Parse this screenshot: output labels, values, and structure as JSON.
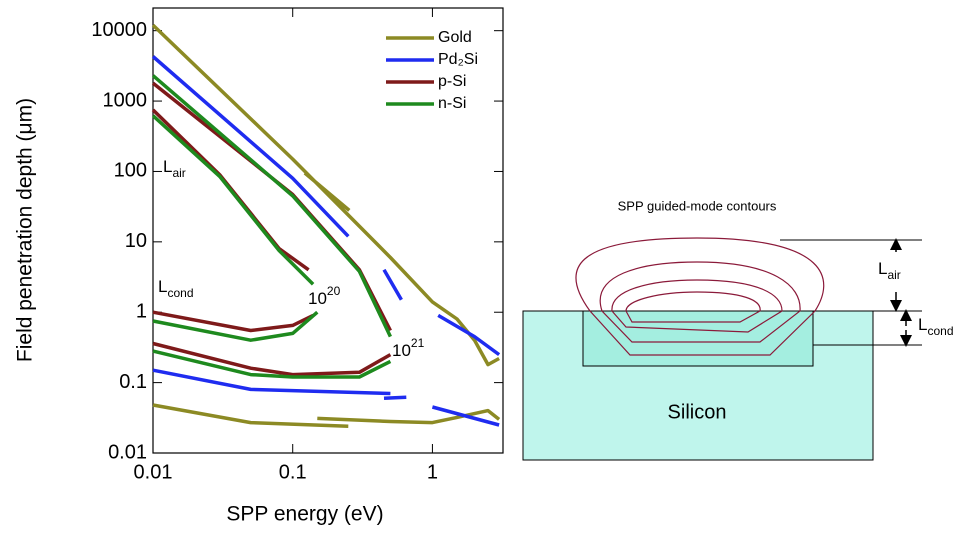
{
  "chart_data": {
    "type": "line",
    "log_x": true,
    "log_y": true,
    "xlabel": "SPP energy (eV)",
    "ylabel": "Field penetration depth (μm)",
    "xlim": [
      0.01,
      3.2
    ],
    "ylim": [
      0.01,
      21000
    ],
    "xticks": [
      0.01,
      0.1,
      1
    ],
    "yticks": [
      0.01,
      0.1,
      1,
      10,
      100,
      1000,
      10000
    ],
    "legend": "upper right",
    "series": [
      {
        "name": "Gold",
        "color": "#8c8a24",
        "x": [
          0.01,
          0.1,
          0.5,
          1,
          1.5,
          2,
          2.5,
          3,
          null,
          0.122,
          0.254,
          null,
          0.01,
          0.05,
          0.25,
          null,
          0.15,
          0.5,
          1,
          1.5,
          2.5,
          3
        ],
        "values": [
          12000,
          150,
          6,
          1.4,
          0.8,
          0.4,
          0.18,
          0.22,
          null,
          95,
          28,
          null,
          0.048,
          0.027,
          0.024,
          null,
          0.031,
          0.028,
          0.027,
          0.032,
          0.04,
          0.03
        ]
      },
      {
        "name": "Pd₂Si",
        "color": "#1f2cf0",
        "x": [
          0.01,
          0.1,
          0.25,
          null,
          0.45,
          0.6,
          null,
          1.1,
          2,
          3,
          null,
          0.01,
          0.05,
          0.5,
          null,
          0.45,
          0.65,
          null,
          1,
          3
        ],
        "values": [
          4300,
          80,
          12,
          null,
          4,
          1.5,
          null,
          0.9,
          0.45,
          0.25,
          null,
          0.15,
          0.08,
          0.07,
          null,
          0.06,
          0.062,
          null,
          0.045,
          0.025
        ]
      },
      {
        "name": "p-Si",
        "color": "#7e1a1a",
        "x": [
          0.01,
          0.1,
          0.3,
          0.5,
          null,
          0.01,
          0.03,
          0.08,
          0.13,
          null,
          0.01,
          0.05,
          0.1,
          0.14,
          null,
          0.01,
          0.05,
          0.1,
          0.3,
          0.5
        ],
        "values": [
          1800,
          47,
          4,
          0.55,
          null,
          750,
          90,
          8,
          4,
          null,
          1.0,
          0.55,
          0.65,
          0.9,
          null,
          0.36,
          0.16,
          0.13,
          0.14,
          0.25
        ]
      },
      {
        "name": "n-Si",
        "color": "#1e8a1e",
        "x": [
          0.01,
          0.1,
          0.3,
          0.5,
          null,
          0.01,
          0.03,
          0.08,
          0.14,
          null,
          0.01,
          0.05,
          0.1,
          0.15,
          null,
          0.01,
          0.05,
          0.1,
          0.3,
          0.5
        ],
        "values": [
          2300,
          45,
          3.8,
          0.45,
          null,
          620,
          85,
          7.5,
          2.5,
          null,
          0.75,
          0.4,
          0.5,
          1.0,
          null,
          0.28,
          0.13,
          0.12,
          0.12,
          0.2
        ]
      }
    ],
    "annotations": [
      {
        "base": "L",
        "sub": "air"
      },
      {
        "base": "L",
        "sub": "cond"
      },
      {
        "base": "10",
        "sup": "20"
      },
      {
        "base": "10",
        "sup": "21"
      }
    ]
  },
  "diagram": {
    "title": "SPP guided-mode contours",
    "substrate": "Silicon",
    "l_air": {
      "base": "L",
      "sub": "air"
    },
    "l_cond": {
      "base": "L",
      "sub": "cond"
    }
  }
}
